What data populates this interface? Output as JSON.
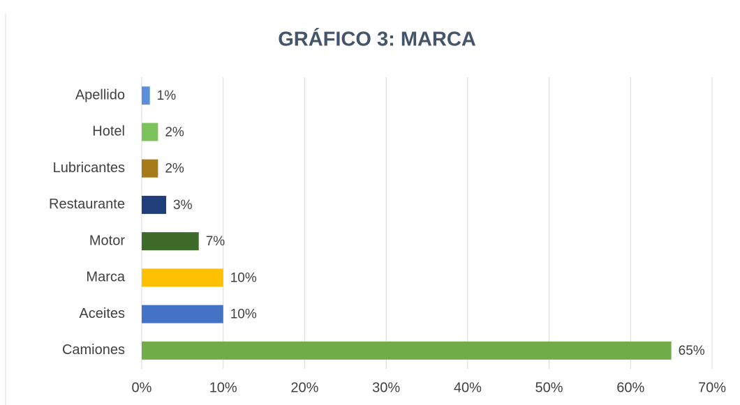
{
  "chart_data": {
    "type": "bar",
    "orientation": "horizontal",
    "title": "GRÁFICO 3: MARCA",
    "categories": [
      "Apellido",
      "Hotel",
      "Lubricantes",
      "Restaurante",
      "Motor",
      "Marca",
      "Aceites",
      "Camiones"
    ],
    "values": [
      1,
      2,
      2,
      3,
      7,
      10,
      10,
      65
    ],
    "value_labels": [
      "1%",
      "2%",
      "2%",
      "3%",
      "7%",
      "10%",
      "10%",
      "65%"
    ],
    "colors": [
      "#5b8fd9",
      "#7dc35b",
      "#a67c1a",
      "#203f7a",
      "#3f6b2a",
      "#ffc000",
      "#4472c4",
      "#70ad47"
    ],
    "xlim": [
      0,
      70
    ],
    "xticks": [
      {
        "value": 0,
        "label": "0%"
      },
      {
        "value": 10,
        "label": "10%"
      },
      {
        "value": 20,
        "label": "20%"
      },
      {
        "value": 30,
        "label": "30%"
      },
      {
        "value": 40,
        "label": "40%"
      },
      {
        "value": 50,
        "label": "50%"
      },
      {
        "value": 60,
        "label": "60%"
      },
      {
        "value": 70,
        "label": "70%"
      }
    ],
    "grid": true
  }
}
